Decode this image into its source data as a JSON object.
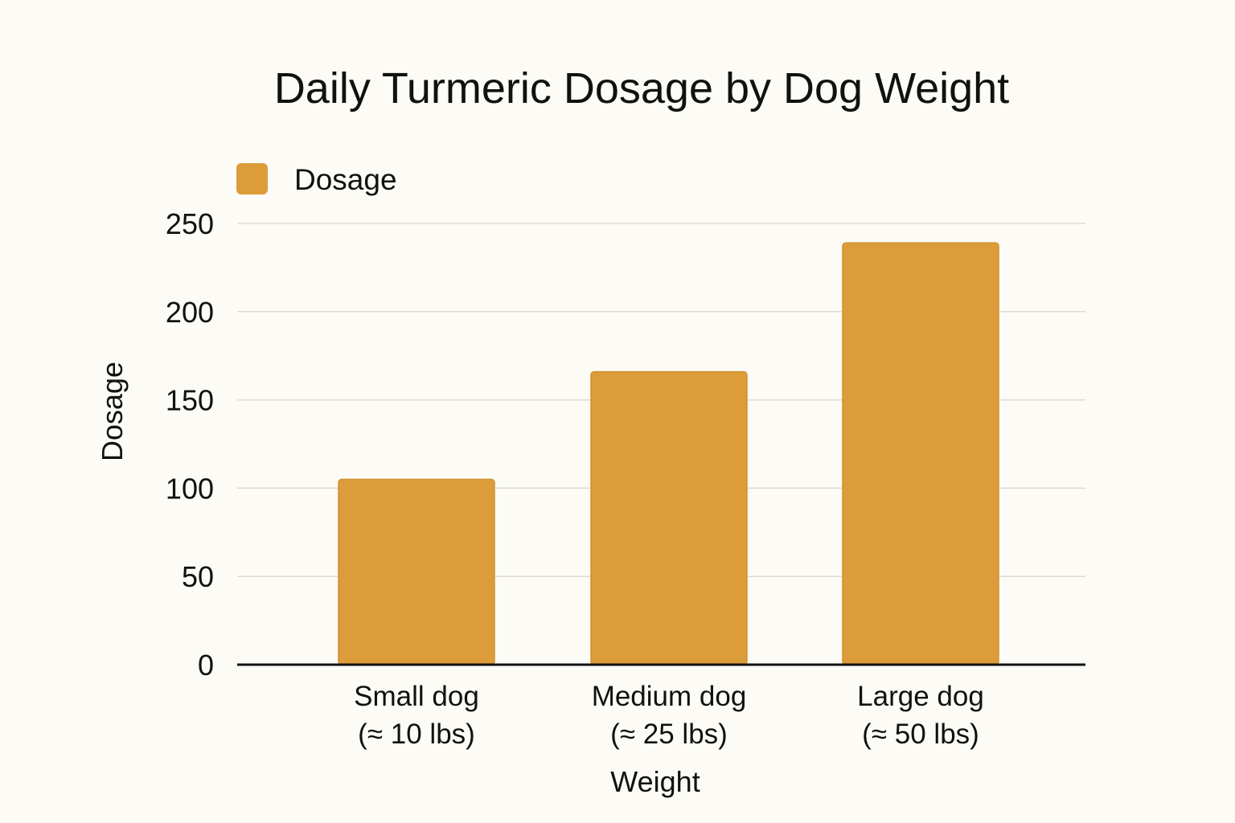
{
  "chart_data": {
    "type": "bar",
    "title": "Daily Turmeric Dosage by Dog Weight",
    "xlabel": "Weight",
    "ylabel": "Dosage",
    "categories": [
      [
        "Small dog",
        "(≈ 10 lbs)"
      ],
      [
        "Medium dog",
        "(≈ 25 lbs)"
      ],
      [
        "Large dog",
        "(≈ 50 lbs)"
      ]
    ],
    "series": [
      {
        "name": "Dosage",
        "values": [
          105,
          166,
          239
        ],
        "color": "#dc9c3a"
      }
    ],
    "ylim": [
      0,
      250
    ],
    "yticks": [
      0,
      50,
      100,
      150,
      200,
      250
    ],
    "grid": true,
    "legend_position": "top-left"
  }
}
